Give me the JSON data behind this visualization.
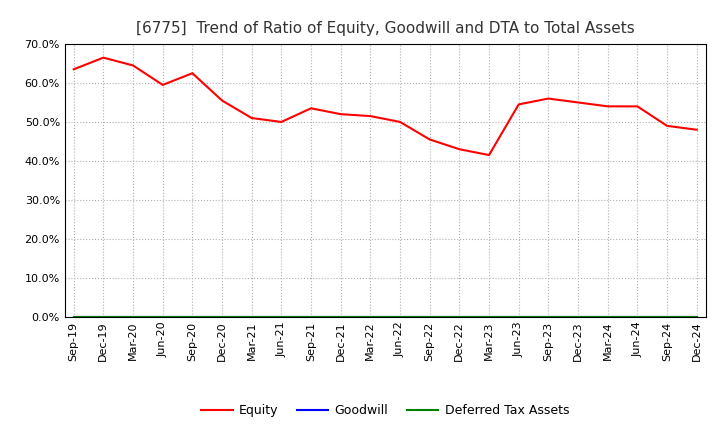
{
  "title": "[6775]  Trend of Ratio of Equity, Goodwill and DTA to Total Assets",
  "x_labels": [
    "Sep-19",
    "Dec-19",
    "Mar-20",
    "Jun-20",
    "Sep-20",
    "Dec-20",
    "Mar-21",
    "Jun-21",
    "Sep-21",
    "Dec-21",
    "Mar-22",
    "Jun-22",
    "Sep-22",
    "Dec-22",
    "Mar-23",
    "Jun-23",
    "Sep-23",
    "Dec-23",
    "Mar-24",
    "Jun-24",
    "Sep-24",
    "Dec-24"
  ],
  "equity": [
    63.5,
    66.5,
    64.5,
    59.5,
    62.5,
    55.5,
    51.0,
    50.0,
    53.5,
    52.0,
    51.5,
    50.0,
    45.5,
    43.0,
    41.5,
    54.5,
    56.0,
    55.0,
    54.0,
    54.0,
    49.0,
    48.0
  ],
  "goodwill": [
    0,
    0,
    0,
    0,
    0,
    0,
    0,
    0,
    0,
    0,
    0,
    0,
    0,
    0,
    0,
    0,
    0,
    0,
    0,
    0,
    0,
    0
  ],
  "deferred_tax_assets": [
    0,
    0,
    0,
    0,
    0,
    0,
    0,
    0,
    0,
    0,
    0,
    0,
    0,
    0,
    0,
    0,
    0,
    0,
    0,
    0,
    0,
    0
  ],
  "equity_color": "#ff0000",
  "goodwill_color": "#0000ff",
  "dta_color": "#008000",
  "ylim": [
    0,
    70
  ],
  "yticks": [
    0,
    10,
    20,
    30,
    40,
    50,
    60,
    70
  ],
  "background_color": "#ffffff",
  "grid_color": "#b0b0b0",
  "title_fontsize": 11,
  "tick_fontsize": 8,
  "legend_labels": [
    "Equity",
    "Goodwill",
    "Deferred Tax Assets"
  ]
}
